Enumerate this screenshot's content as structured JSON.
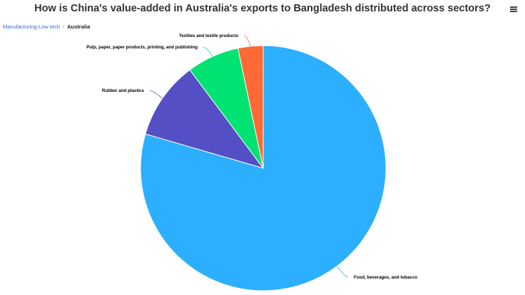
{
  "title": "How is China's value-added in Australia's exports to Bangladesh distributed across sectors?",
  "menu_icon": "hamburger-menu-icon",
  "breadcrumb": {
    "parent": "Manufacturing-Low tech",
    "separator": "/",
    "current": "Australia"
  },
  "chart_data": {
    "type": "pie",
    "title": "How is China's value-added in Australia's exports to Bangladesh distributed across sectors?",
    "start_angle_deg": 0,
    "slices": [
      {
        "name": "Food, beverages, and tobacco",
        "value": 79.5,
        "color": "#2caffe"
      },
      {
        "name": "Rubber and plastics",
        "value": 10.3,
        "color": "#544fc5"
      },
      {
        "name": "Pulp, paper, paper products, printing, and publishing",
        "value": 6.9,
        "color": "#00e272"
      },
      {
        "name": "Textiles and textile products",
        "value": 3.3,
        "color": "#fe6a35"
      }
    ]
  }
}
